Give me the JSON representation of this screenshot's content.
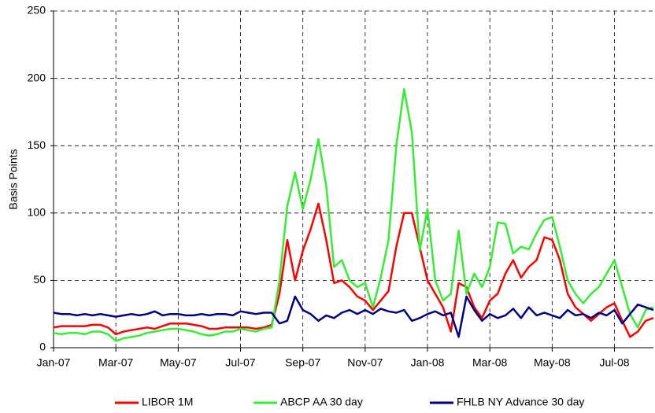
{
  "chart_data": {
    "type": "line",
    "y_label": "Basis Points",
    "categories": [
      "Jan-07",
      null,
      null,
      null,
      null,
      null,
      null,
      null,
      "Mar-07",
      null,
      null,
      null,
      null,
      null,
      null,
      null,
      "May-07",
      null,
      null,
      null,
      null,
      null,
      null,
      null,
      "Jul-07",
      null,
      null,
      null,
      null,
      null,
      null,
      null,
      "Sep-07",
      null,
      null,
      null,
      null,
      null,
      null,
      null,
      "Nov-07",
      null,
      null,
      null,
      null,
      null,
      null,
      null,
      "Jan-08",
      null,
      null,
      null,
      null,
      null,
      null,
      null,
      "Mar-08",
      null,
      null,
      null,
      null,
      null,
      null,
      null,
      "May-08",
      null,
      null,
      null,
      null,
      null,
      null,
      null,
      "Jul-08",
      null,
      null,
      null,
      null,
      null
    ],
    "series": [
      {
        "name": "LIBOR 1M",
        "color": "#ff0000",
        "values": [
          15,
          16,
          16,
          16,
          16,
          17,
          17,
          15,
          10,
          12,
          13,
          14,
          15,
          14,
          16,
          18,
          18,
          18,
          17,
          16,
          14,
          14,
          15,
          15,
          15,
          15,
          14,
          15,
          17,
          40,
          80,
          50,
          72,
          88,
          107,
          80,
          48,
          50,
          45,
          38,
          35,
          28,
          35,
          42,
          75,
          100,
          100,
          75,
          50,
          40,
          30,
          12,
          48,
          45,
          30,
          22,
          35,
          40,
          55,
          65,
          52,
          60,
          65,
          82,
          80,
          65,
          40,
          30,
          25,
          20,
          25,
          30,
          33,
          20,
          8,
          12,
          20,
          22
        ]
      },
      {
        "name": "ABCP AA 30 day",
        "color": "#33ee33",
        "values": [
          11,
          10,
          11,
          11,
          10,
          12,
          12,
          10,
          5,
          7,
          8,
          9,
          11,
          12,
          13,
          14,
          14,
          13,
          12,
          10,
          9,
          10,
          12,
          12,
          14,
          13,
          12,
          14,
          15,
          50,
          105,
          130,
          103,
          125,
          155,
          120,
          60,
          65,
          50,
          45,
          48,
          30,
          52,
          80,
          150,
          192,
          160,
          72,
          103,
          50,
          35,
          40,
          87,
          40,
          55,
          45,
          60,
          93,
          92,
          70,
          75,
          73,
          85,
          95,
          97,
          75,
          50,
          40,
          33,
          40,
          45,
          55,
          65,
          45,
          25,
          15,
          28,
          30
        ]
      },
      {
        "name": "FHLB NY Advance 30 day",
        "color": "#000080",
        "values": [
          26,
          25,
          25,
          24,
          25,
          24,
          25,
          24,
          23,
          24,
          25,
          24,
          25,
          27,
          24,
          25,
          25,
          24,
          24,
          25,
          24,
          25,
          25,
          24,
          27,
          26,
          25,
          26,
          26,
          18,
          20,
          38,
          28,
          25,
          20,
          24,
          22,
          26,
          28,
          25,
          28,
          25,
          29,
          27,
          26,
          28,
          20,
          22,
          25,
          27,
          24,
          26,
          8,
          38,
          28,
          20,
          25,
          22,
          24,
          29,
          22,
          30,
          24,
          26,
          24,
          22,
          28,
          24,
          25,
          22,
          26,
          24,
          28,
          18,
          25,
          32,
          30,
          28
        ]
      }
    ],
    "ylim": [
      0,
      250
    ],
    "yticks": [
      0,
      50,
      100,
      150,
      200,
      250
    ],
    "grid": true,
    "legend": "bottom"
  }
}
